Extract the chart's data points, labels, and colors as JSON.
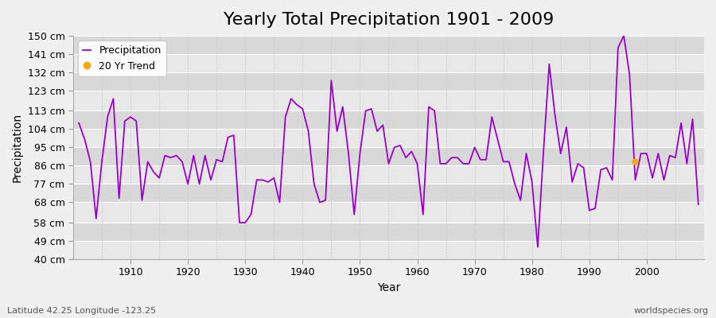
{
  "title": "Yearly Total Precipitation 1901 - 2009",
  "xlabel": "Year",
  "ylabel": "Precipitation",
  "lat_lon_label": "Latitude 42.25 Longitude -123.25",
  "watermark": "worldspecies.org",
  "ylim": [
    40,
    150
  ],
  "yticks": [
    40,
    49,
    58,
    68,
    77,
    86,
    95,
    104,
    113,
    123,
    132,
    141,
    150
  ],
  "ytick_labels": [
    "40 cm",
    "49 cm",
    "58 cm",
    "68 cm",
    "77 cm",
    "86 cm",
    "95 cm",
    "104 cm",
    "113 cm",
    "123 cm",
    "132 cm",
    "141 cm",
    "150 cm"
  ],
  "xlim": [
    1900,
    2010
  ],
  "xticks": [
    1910,
    1920,
    1930,
    1940,
    1950,
    1960,
    1970,
    1980,
    1990,
    2000
  ],
  "years": [
    1901,
    1902,
    1903,
    1904,
    1905,
    1906,
    1907,
    1908,
    1909,
    1910,
    1911,
    1912,
    1913,
    1914,
    1915,
    1916,
    1917,
    1918,
    1919,
    1920,
    1921,
    1922,
    1923,
    1924,
    1925,
    1926,
    1927,
    1928,
    1929,
    1930,
    1931,
    1932,
    1933,
    1934,
    1935,
    1936,
    1937,
    1938,
    1939,
    1940,
    1941,
    1942,
    1943,
    1944,
    1945,
    1946,
    1947,
    1948,
    1949,
    1950,
    1951,
    1952,
    1953,
    1954,
    1955,
    1956,
    1957,
    1958,
    1959,
    1960,
    1961,
    1962,
    1963,
    1964,
    1965,
    1966,
    1967,
    1968,
    1969,
    1970,
    1971,
    1972,
    1973,
    1974,
    1975,
    1976,
    1977,
    1978,
    1979,
    1980,
    1981,
    1982,
    1983,
    1984,
    1985,
    1986,
    1987,
    1988,
    1989,
    1990,
    1991,
    1992,
    1993,
    1994,
    1995,
    1996,
    1997,
    1998,
    1999,
    2000,
    2001,
    2002,
    2003,
    2004,
    2005,
    2006,
    2007,
    2008,
    2009
  ],
  "precip": [
    107,
    99,
    88,
    60,
    88,
    110,
    119,
    70,
    108,
    110,
    108,
    69,
    88,
    83,
    80,
    91,
    90,
    91,
    88,
    77,
    91,
    77,
    91,
    79,
    89,
    88,
    100,
    101,
    58,
    58,
    62,
    79,
    79,
    78,
    80,
    68,
    110,
    119,
    116,
    114,
    103,
    77,
    68,
    69,
    128,
    103,
    115,
    92,
    62,
    92,
    113,
    114,
    103,
    106,
    87,
    95,
    96,
    90,
    93,
    87,
    62,
    115,
    113,
    87,
    87,
    90,
    90,
    87,
    87,
    95,
    89,
    89,
    110,
    99,
    88,
    88,
    77,
    69,
    92,
    78,
    46,
    93,
    136,
    111,
    92,
    105,
    78,
    87,
    85,
    64,
    65,
    84,
    85,
    79,
    144,
    150,
    131,
    79,
    92,
    92,
    80,
    92,
    79,
    91,
    90,
    107,
    87,
    109,
    67
  ],
  "trend_year": 1998,
  "trend_value": 88,
  "line_color": "#9900cc",
  "trend_color": "#FFA500",
  "bg_color": "#f0f0f0",
  "plot_bg_color": "#e8e8e8",
  "band_color_light": "#e8e8e8",
  "band_color_dark": "#d8d8d8",
  "grid_color_h": "#ffffff",
  "grid_color_v": "#cccccc",
  "title_fontsize": 16,
  "label_fontsize": 10,
  "tick_fontsize": 9
}
